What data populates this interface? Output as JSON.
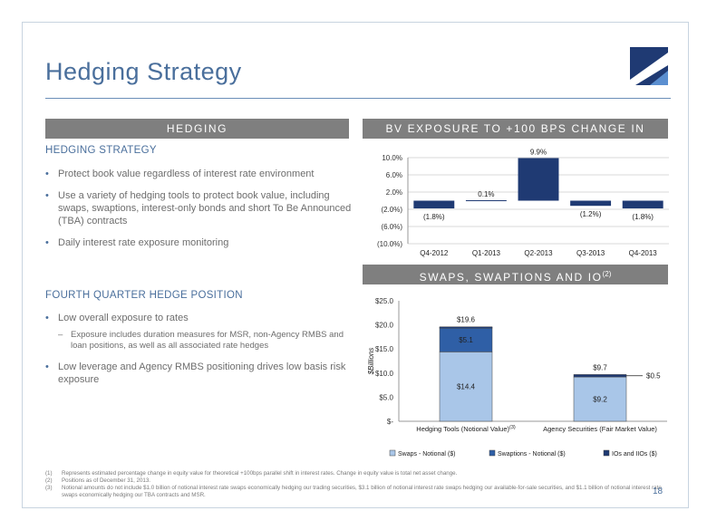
{
  "title": "Hedging Strategy",
  "left_header": "HEDGING",
  "section1": {
    "title": "HEDGING STRATEGY",
    "bullets": [
      "Protect book value regardless of interest rate environment",
      "Use a variety of hedging tools to protect book value, including swaps, swaptions, interest-only bonds and short To Be Announced (TBA) contracts",
      "Daily interest rate exposure monitoring"
    ]
  },
  "section2": {
    "title": "FOURTH QUARTER HEDGE POSITION",
    "bullet1": "Low overall exposure to rates",
    "dash1": "Exposure includes duration measures for MSR, non-Agency RMBS and loan positions, as well as all associated rate hedges",
    "bullet2": "Low leverage and Agency RMBS positioning drives low basis risk exposure"
  },
  "chart1_header": "BV EXPOSURE TO +100 BPS CHANGE IN RATES",
  "chart1_header_sup": "(1)",
  "chart2_header": "SWAPS, SWAPTIONS AND IO",
  "chart2_header_sup": "(2)",
  "colors": {
    "accent": "#4a6f9c",
    "bar_dark": "#1f3a73",
    "bar_mid": "#2f5fa6",
    "bar_light": "#a9c6e8",
    "header_gray": "#7f7f7f"
  },
  "chart_data": [
    {
      "type": "bar",
      "categories": [
        "Q4-2012",
        "Q1-2013",
        "Q2-2013",
        "Q3-2013",
        "Q4-2013"
      ],
      "values": [
        -1.8,
        0.1,
        9.9,
        -1.2,
        -1.8
      ],
      "labels": [
        "(1.8%)",
        "0.1%",
        "9.9%",
        "(1.2%)",
        "(1.8%)"
      ],
      "yticks": [
        "10.0%",
        "6.0%",
        "2.0%",
        "(2.0%)",
        "(6.0%)",
        "(10.0%)"
      ],
      "ytick_values": [
        10,
        6,
        2,
        -2,
        -6,
        -10
      ],
      "ylim": [
        -10,
        10
      ]
    },
    {
      "type": "bar",
      "stacked": true,
      "categories": [
        "Hedging Tools (Notional Value)",
        "Agency Securities (Fair Market Value)"
      ],
      "category_sup": [
        "(3)",
        ""
      ],
      "series": [
        {
          "name": "Swaps - Notional ($)",
          "values": [
            14.4,
            9.2
          ],
          "labels": [
            "$14.4",
            "$9.2"
          ]
        },
        {
          "name": "Swaptions - Notional ($)",
          "values": [
            5.1,
            0.0
          ],
          "labels": [
            "$5.1",
            ""
          ]
        },
        {
          "name": "IOs and IIOs ($)",
          "values": [
            0.1,
            0.5
          ],
          "labels": [
            "",
            "$0.5"
          ]
        }
      ],
      "totals": [
        "$19.6",
        "$9.7"
      ],
      "ylabel": "$Billions",
      "yticks": [
        "$25.0",
        "$20.0",
        "$15.0",
        "$10.0",
        "$5.0",
        "$-"
      ],
      "ytick_values": [
        25,
        20,
        15,
        10,
        5,
        0
      ],
      "ylim": [
        0,
        25
      ]
    }
  ],
  "footnotes": [
    {
      "num": "(1)",
      "text": "Represents estimated percentage change in equity value for theoretical +100bps parallel shift in interest rates. Change in equity value is total net asset change."
    },
    {
      "num": "(2)",
      "text": "Positions as of December 31, 2013."
    },
    {
      "num": "(3)",
      "text": "Notional amounts do not include $1.0 billion of notional interest rate swaps economically hedging our trading securities, $3.1 billion of notional interest rate swaps hedging our available-for-sale securities, and $1.1 billion of notional interest rate swaps economically hedging our TBA contracts and MSR."
    }
  ],
  "page_number": "18"
}
